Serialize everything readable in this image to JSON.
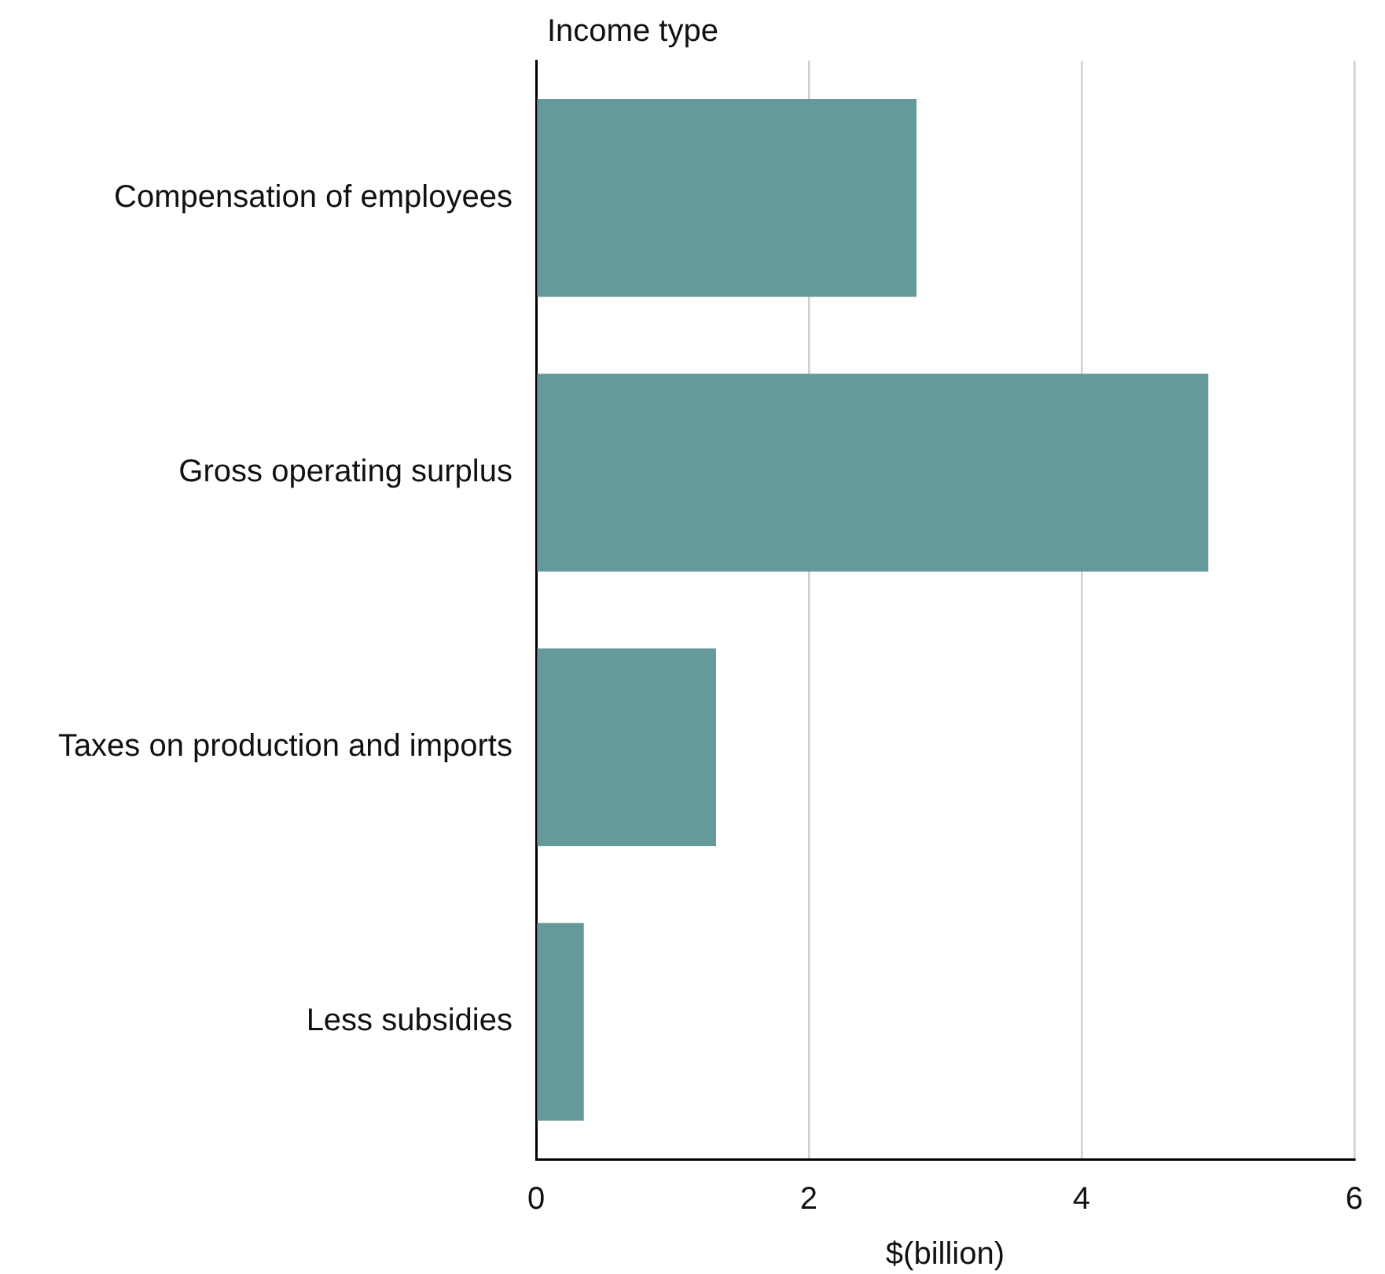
{
  "chart_data": {
    "type": "bar",
    "orientation": "horizontal",
    "ylabel": "Income type",
    "xlabel": "$(billion)",
    "categories": [
      "Compensation of employees",
      "Gross operating surplus",
      "Taxes on production and imports",
      "Less subsidies"
    ],
    "values": [
      2.79,
      4.93,
      1.32,
      0.35
    ],
    "color": "#669999",
    "xlim": [
      0,
      6
    ],
    "xticks": [
      0,
      2,
      4,
      6
    ],
    "grid": "x"
  }
}
